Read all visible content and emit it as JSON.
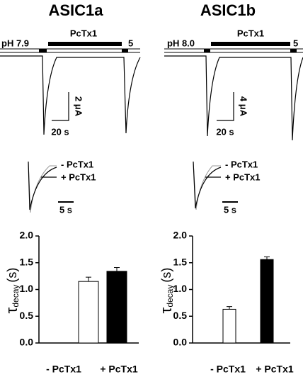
{
  "panels": [
    {
      "title": "ASIC1a",
      "ph": "pH 7.9",
      "drug": "PcTx1",
      "recovery": "5",
      "scale_current": "2 μA",
      "scale_time": "20 s",
      "inset_minus": "- PcTx1",
      "inset_plus": "+ PcTx1",
      "inset_time": "5 s"
    },
    {
      "title": "ASIC1b",
      "ph": "pH 8.0",
      "drug": "PcTx1",
      "recovery": "5",
      "scale_current": "4 μA",
      "scale_time": "20 s",
      "inset_minus": "- PcTx1",
      "inset_plus": "+ PcTx1",
      "inset_time": "5 s"
    }
  ],
  "chart_data": [
    {
      "type": "bar",
      "ylabel": {
        "symbol": "τ",
        "subscript": "decay",
        "unit": "(s)"
      },
      "categories": [
        "- PcTx1",
        "+ PcTx1"
      ],
      "values": [
        1.15,
        1.34
      ],
      "errors": [
        0.08,
        0.07
      ],
      "colors": [
        "#ffffff",
        "#000000"
      ],
      "ylim": [
        0,
        2
      ],
      "yticks": [
        {
          "value": 0,
          "label": "0.0"
        },
        {
          "value": 0.5,
          "label": "0.5"
        },
        {
          "value": 1,
          "label": "1.0"
        },
        {
          "value": 1.5,
          "label": "1.5"
        },
        {
          "value": 2,
          "label": "2.0"
        }
      ]
    },
    {
      "type": "bar",
      "ylabel": {
        "symbol": "τ",
        "subscript": "decay",
        "unit": "(s)"
      },
      "categories": [
        "- PcTx1",
        "+ PcTx1"
      ],
      "values": [
        0.63,
        1.56
      ],
      "errors": [
        0.05,
        0.05
      ],
      "colors": [
        "#ffffff",
        "#000000"
      ],
      "ylim": [
        0,
        2
      ],
      "yticks": [
        {
          "value": 0,
          "label": "0.0"
        },
        {
          "value": 0.5,
          "label": "0.5"
        },
        {
          "value": 1,
          "label": "1.0"
        },
        {
          "value": 1.5,
          "label": "1.5"
        },
        {
          "value": 2,
          "label": "2.0"
        }
      ]
    }
  ]
}
